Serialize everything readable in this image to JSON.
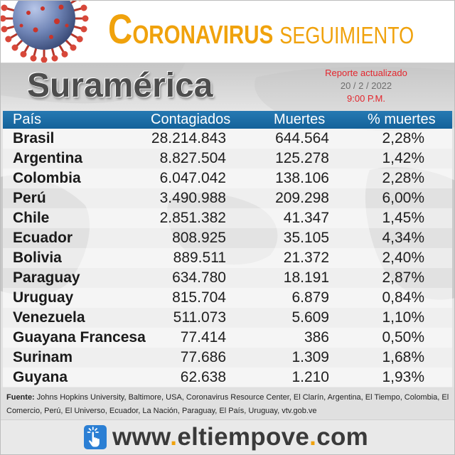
{
  "header": {
    "title_main": "CORONAVIRUS",
    "title_sub": "SEGUIMIENTO",
    "report": {
      "label": "Reporte actualizado",
      "date": "20 / 2 / 2022",
      "time": "9:00 P.M."
    }
  },
  "chart_data": {
    "type": "table",
    "title": "Suramérica",
    "columns": [
      "País",
      "Contagiados",
      "Muertes",
      "% muertes"
    ],
    "rows": [
      {
        "country": "Brasil",
        "cases": "28.214.843",
        "deaths": "644.564",
        "death_rate": "2,28%"
      },
      {
        "country": "Argentina",
        "cases": "8.827.504",
        "deaths": "125.278",
        "death_rate": "1,42%"
      },
      {
        "country": "Colombia",
        "cases": "6.047.042",
        "deaths": "138.106",
        "death_rate": "2,28%"
      },
      {
        "country": "Perú",
        "cases": "3.490.988",
        "deaths": "209.298",
        "death_rate": "6,00%"
      },
      {
        "country": "Chile",
        "cases": "2.851.382",
        "deaths": "41.347",
        "death_rate": "1,45%"
      },
      {
        "country": "Ecuador",
        "cases": "808.925",
        "deaths": "35.105",
        "death_rate": "4,34%"
      },
      {
        "country": "Bolivia",
        "cases": "889.511",
        "deaths": "21.372",
        "death_rate": "2,40%"
      },
      {
        "country": "Paraguay",
        "cases": "634.780",
        "deaths": "18.191",
        "death_rate": "2,87%"
      },
      {
        "country": "Uruguay",
        "cases": "815.704",
        "deaths": "6.879",
        "death_rate": "0,84%"
      },
      {
        "country": "Venezuela",
        "cases": "511.073",
        "deaths": "5.609",
        "death_rate": "1,10%"
      },
      {
        "country": "Guayana Francesa",
        "cases": "77.414",
        "deaths": "386",
        "death_rate": "0,50%"
      },
      {
        "country": "Surinam",
        "cases": "77.686",
        "deaths": "1.309",
        "death_rate": "1,68%"
      },
      {
        "country": "Guyana",
        "cases": "62.638",
        "deaths": "1.210",
        "death_rate": "1,93%"
      }
    ]
  },
  "footer": {
    "source_label": "Fuente:",
    "source_text": "Johns Hopkins University, Baltimore, USA, Coronavirus Resource Center,  El Clarín, Argentina, El Tiempo, Colombia, El Comercio, Perú, El Universo, Ecuador, La Nación, Paraguay, El País, Uruguay, vtv.gob.ve",
    "website": {
      "prefix": "www",
      "dot1": ".",
      "name": "eltiempove",
      "dot2": ".",
      "suffix": "com"
    }
  },
  "icons": {
    "header_illustration": "coronavirus-illustration",
    "website": "click-hand-icon"
  },
  "colors": {
    "title_orange": "#f0a20c",
    "report_red": "#e3262d",
    "table_header_blue": "#1d6fa7",
    "region_title_gray": "#4d4d4d",
    "website_icon_blue": "#2b7fd4"
  }
}
